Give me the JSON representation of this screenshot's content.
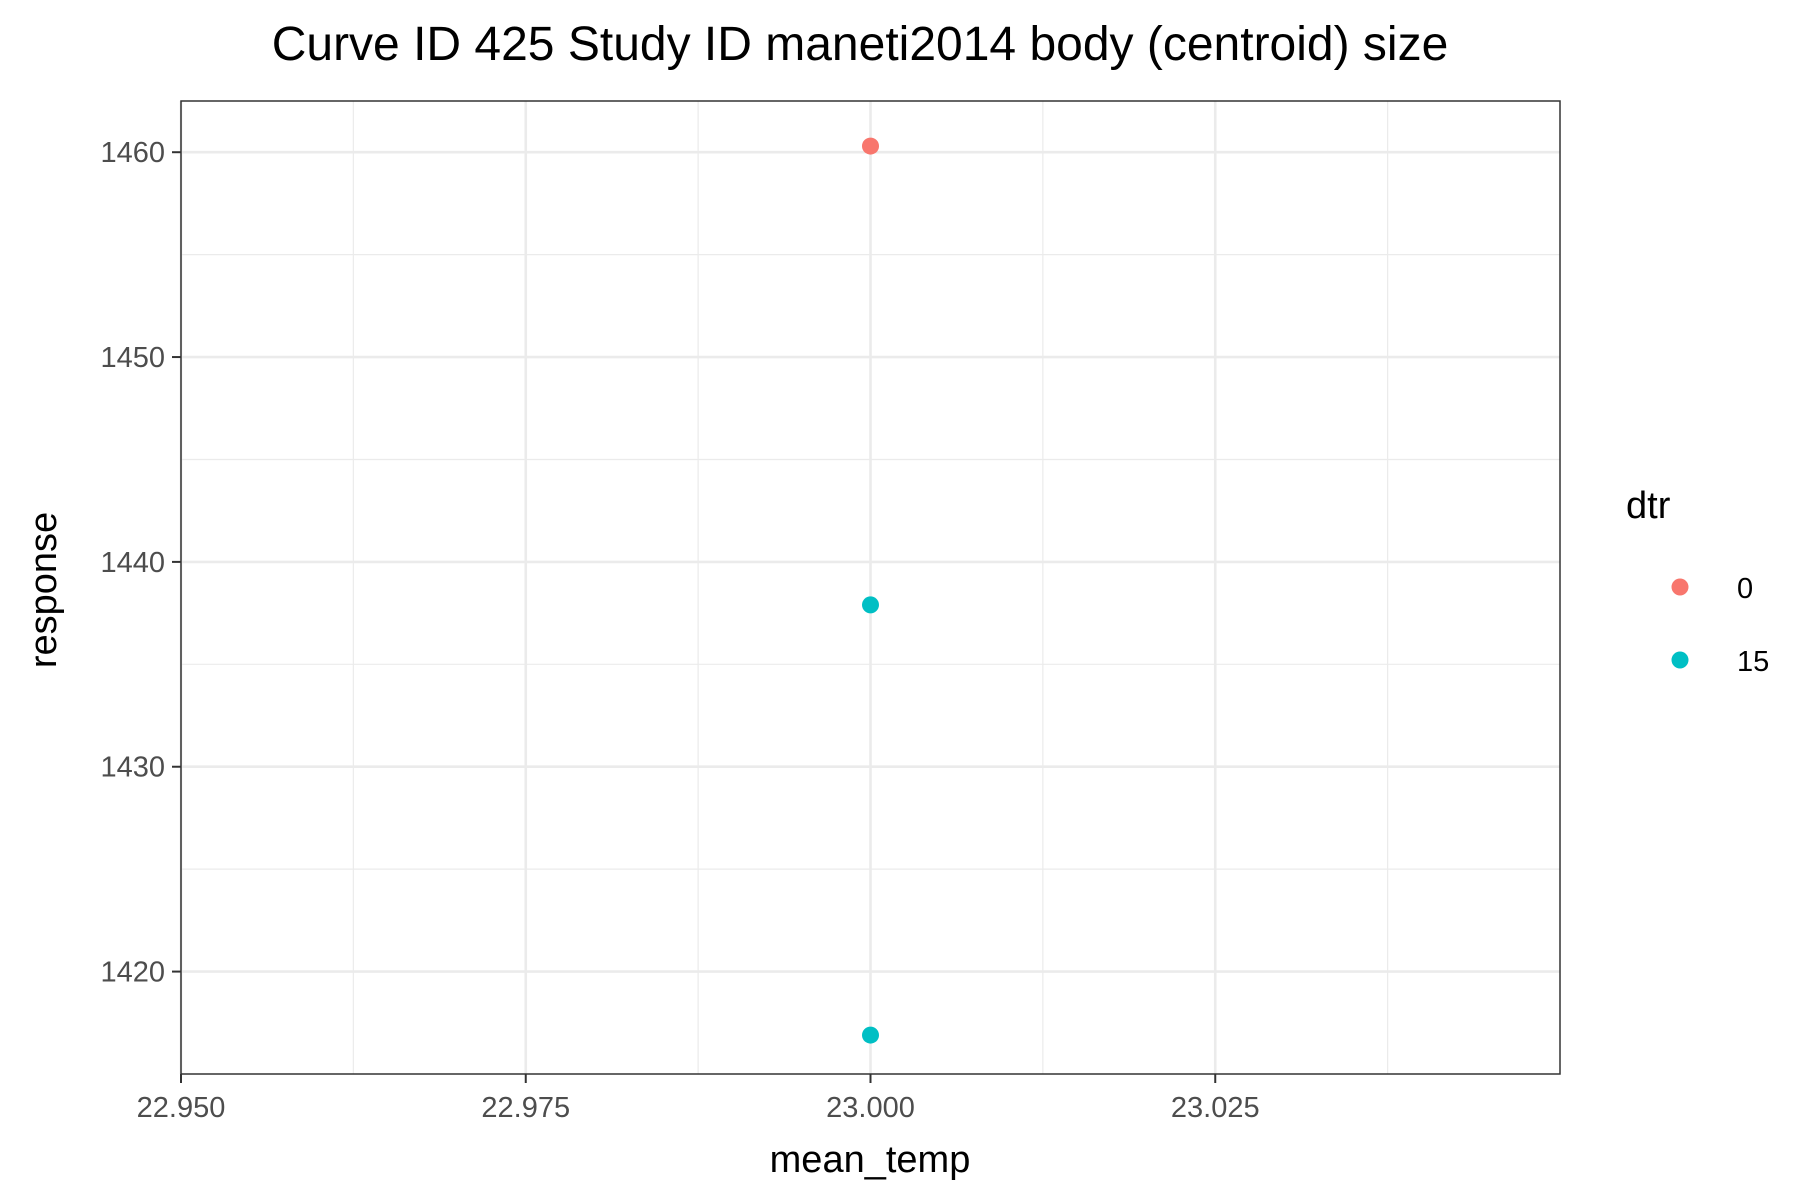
{
  "chart_data": {
    "type": "scatter",
    "title": "Curve ID 425 Study ID maneti2014 body (centroid) size",
    "xlabel": "mean_temp",
    "ylabel": "response",
    "xlim": [
      22.95,
      23.05
    ],
    "ylim": [
      1415,
      1462.5
    ],
    "x_ticks": [
      22.95,
      22.975,
      23.0,
      23.025
    ],
    "x_tick_labels": [
      "22.950",
      "22.975",
      "23.000",
      "23.025"
    ],
    "y_ticks": [
      1420,
      1430,
      1440,
      1450,
      1460
    ],
    "y_tick_labels": [
      "1420",
      "1430",
      "1440",
      "1450",
      "1460"
    ],
    "grid": true,
    "legend": {
      "title": "dtr",
      "position": "right",
      "entries": [
        {
          "label": "0",
          "color": "#F8766D"
        },
        {
          "label": "15",
          "color": "#00BFC4"
        }
      ]
    },
    "series": [
      {
        "name": "0",
        "color": "#F8766D",
        "points": [
          {
            "x": 23.0,
            "y": 1460.3
          }
        ]
      },
      {
        "name": "15",
        "color": "#00BFC4",
        "points": [
          {
            "x": 23.0,
            "y": 1437.9
          },
          {
            "x": 23.0,
            "y": 1416.9
          }
        ]
      }
    ]
  }
}
